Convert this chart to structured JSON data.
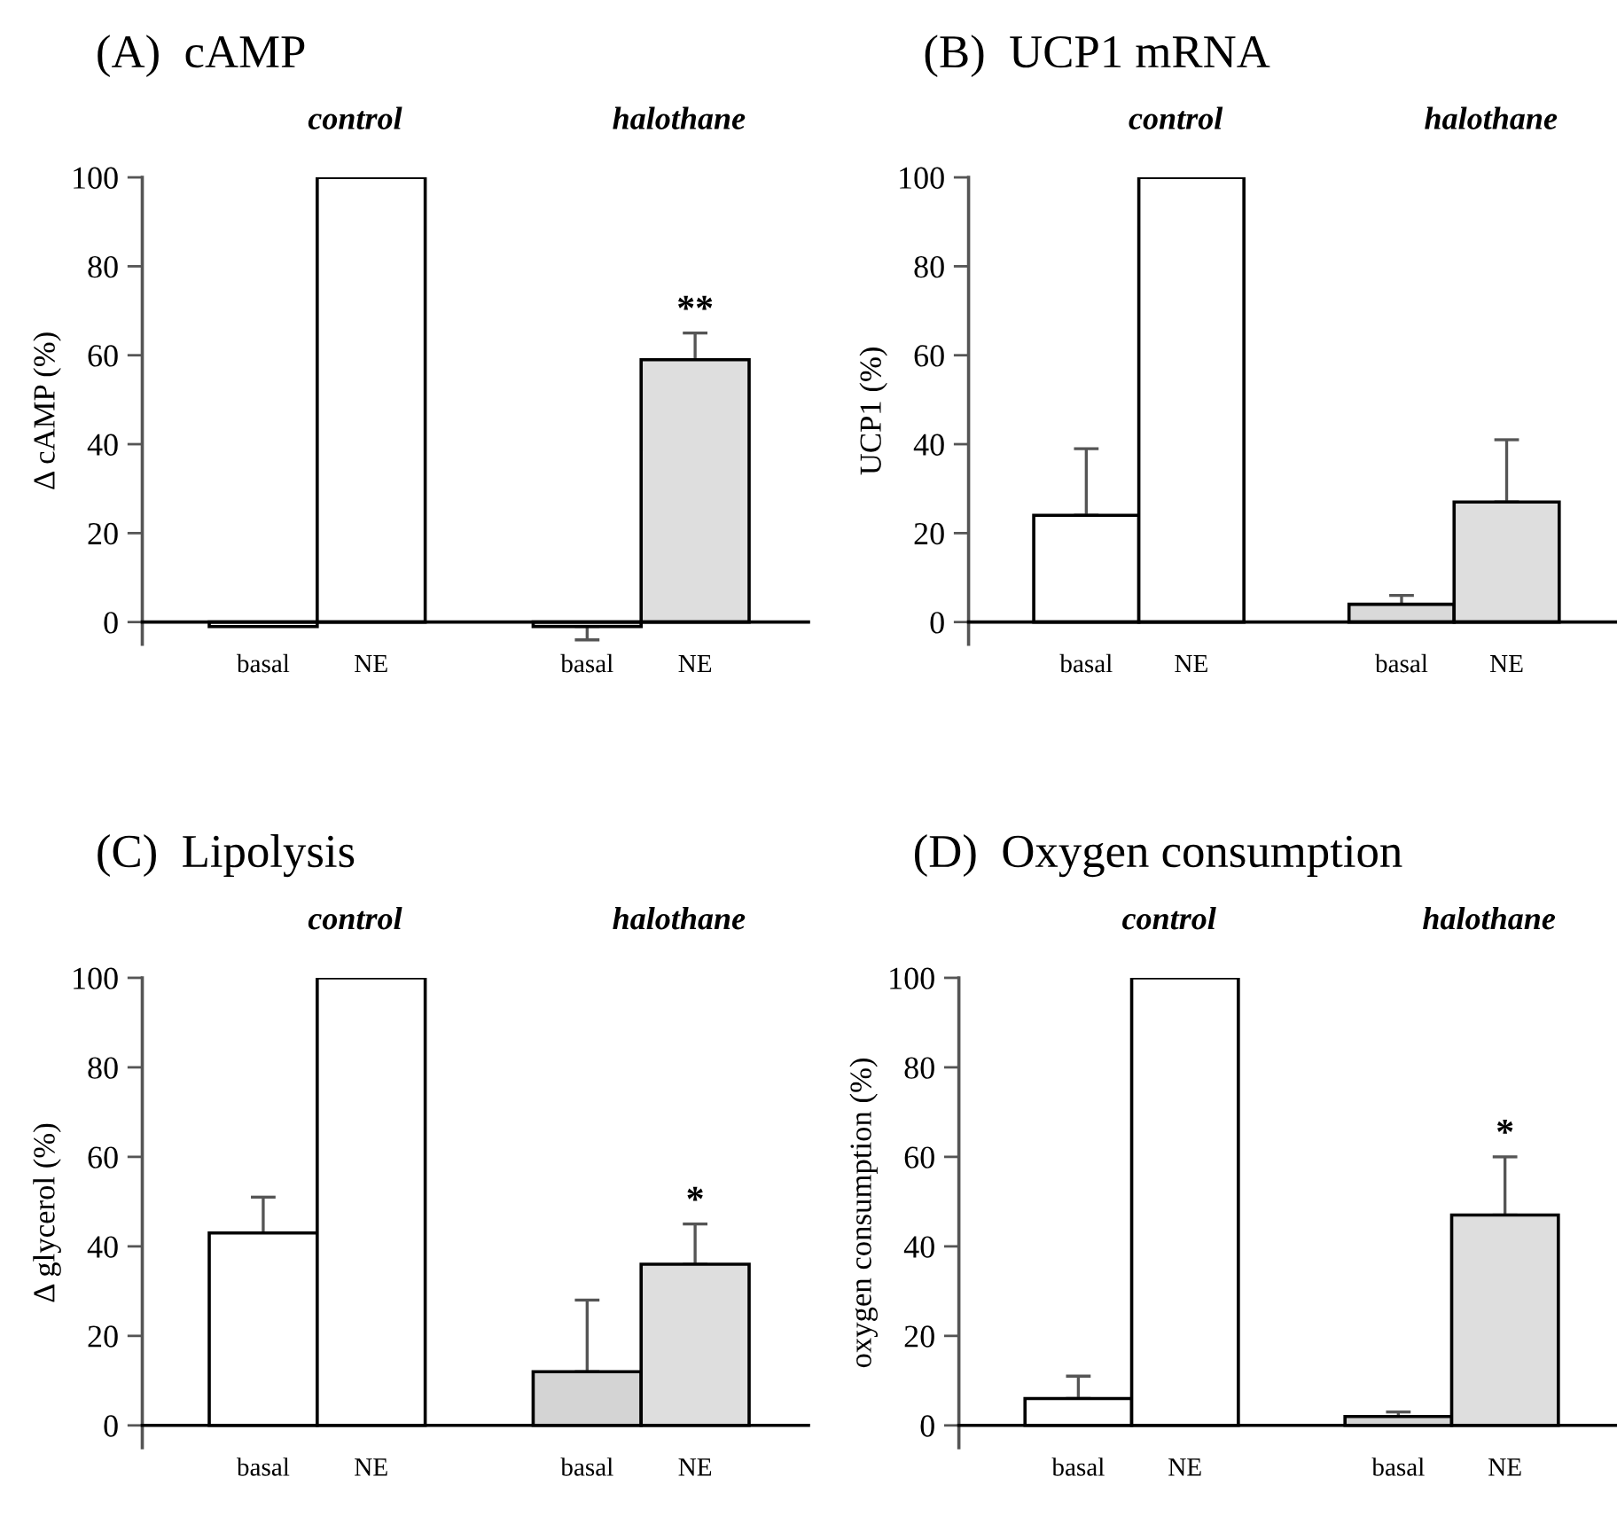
{
  "chart_data": [
    {
      "type": "bar",
      "title": "(A)  cAMP",
      "ylabel": "Δ cAMP (%)",
      "categories": [
        "basal",
        "NE",
        null,
        "basal",
        "NE"
      ],
      "annotations": [
        "control",
        "halothane"
      ],
      "values": [
        -1,
        100,
        null,
        -1,
        59
      ],
      "colors": [
        "#ffffff",
        "#ffffff",
        "#ffffff",
        "#d9d9d9",
        "#dedede"
      ],
      "errors": [
        null,
        null,
        null,
        [
          -4,
          -1
        ],
        [
          59,
          65
        ]
      ],
      "value_labels": [
        null,
        null,
        null,
        null,
        "**"
      ],
      "ylim": [
        -5,
        100
      ],
      "yticks": [
        0,
        20,
        40,
        60,
        80,
        100
      ],
      "grid": false,
      "legend": false
    },
    {
      "type": "bar",
      "title": "(B)  UCP1 mRNA",
      "ylabel": "UCP1 (%)",
      "categories": [
        "basal",
        "NE",
        null,
        "basal",
        "NE"
      ],
      "annotations": [
        "control",
        "halothane"
      ],
      "values": [
        24,
        100,
        null,
        4,
        27
      ],
      "colors": [
        "#ffffff",
        "#ffffff",
        "#ffffff",
        "#d9d9d9",
        "#dedede"
      ],
      "errors": [
        [
          24,
          39
        ],
        null,
        null,
        [
          4,
          6
        ],
        [
          27,
          41
        ]
      ],
      "ylim": [
        -5,
        100
      ],
      "yticks": [
        0,
        20,
        40,
        60,
        80,
        100
      ],
      "grid": false,
      "legend": false
    },
    {
      "type": "bar",
      "title": "(C)  Lipolysis",
      "ylabel": "Δ glycerol (%)",
      "categories": [
        "basal",
        "NE",
        null,
        "basal",
        "NE"
      ],
      "annotations": [
        "control",
        "halothane"
      ],
      "values": [
        43,
        100,
        null,
        12,
        36
      ],
      "colors": [
        "#ffffff",
        "#ffffff",
        "#ffffff",
        "#d4d4d4",
        "#dedede"
      ],
      "errors": [
        [
          43,
          51
        ],
        null,
        null,
        [
          12,
          28
        ],
        [
          36,
          45
        ]
      ],
      "value_labels": [
        null,
        null,
        null,
        null,
        "*"
      ],
      "ylim": [
        -5,
        100
      ],
      "yticks": [
        0,
        20,
        40,
        60,
        80,
        100
      ],
      "grid": false,
      "legend": false
    },
    {
      "type": "bar",
      "title": "(D)  Oxygen consumption",
      "ylabel": "oxygen consumption (%)",
      "categories": [
        "basal",
        "NE",
        null,
        "basal",
        "NE"
      ],
      "annotations": [
        "control",
        "halothane"
      ],
      "values": [
        6,
        100,
        null,
        2,
        47
      ],
      "colors": [
        "#ffffff",
        "#ffffff",
        "#ffffff",
        "#d4d4d4",
        "#dedede"
      ],
      "errors": [
        [
          6,
          11
        ],
        null,
        null,
        [
          2,
          3
        ],
        [
          47,
          60
        ]
      ],
      "value_labels": [
        null,
        null,
        null,
        null,
        "*"
      ],
      "ylim": [
        -5,
        100
      ],
      "yticks": [
        0,
        20,
        40,
        60,
        80,
        100
      ],
      "grid": false,
      "legend": false
    }
  ]
}
